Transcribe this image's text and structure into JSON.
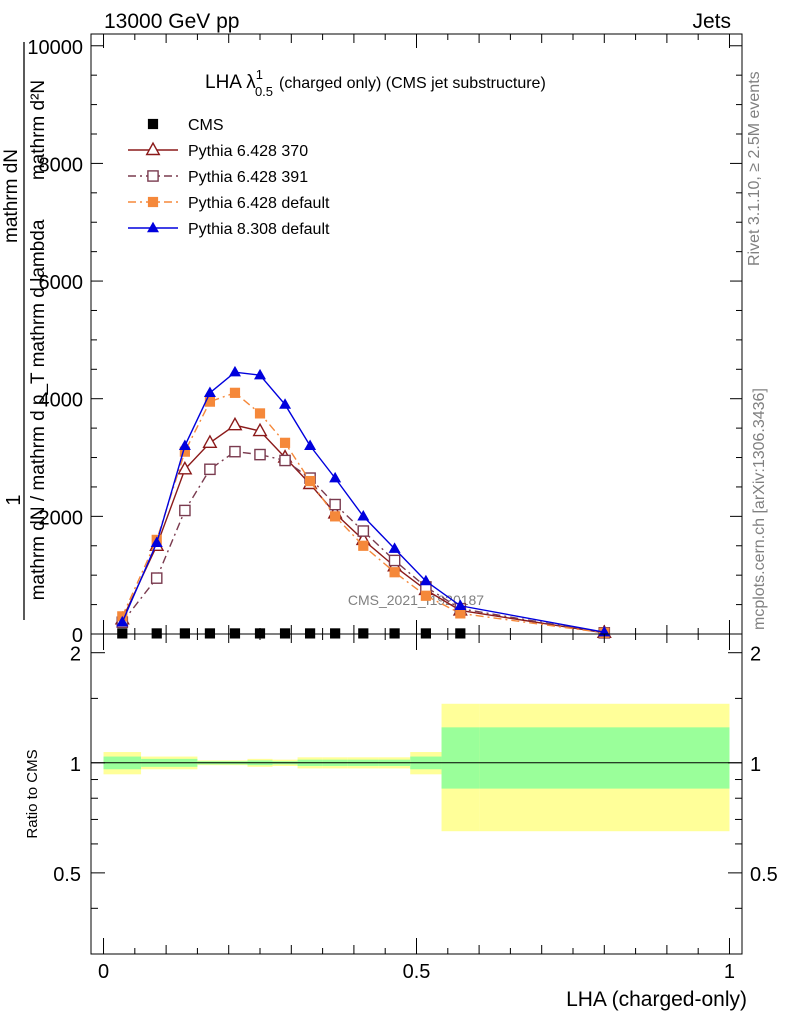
{
  "header": {
    "left": "13000 GeV pp",
    "right": "Jets"
  },
  "side_labels": {
    "rivet": "Rivet 3.1.10, ≥ 2.5M events",
    "mcplots": "mcplots.cern.ch [arXiv:1306.3436]"
  },
  "watermark": "CMS_2021_I1920187",
  "chart_data": [
    {
      "type": "line",
      "title": {
        "main": "LHA λ",
        "sup": "1",
        "sub": "0.5",
        "rest": "(charged only) (CMS jet substructure)"
      },
      "ylabel": {
        "numerator": "1",
        "fraction_top": "mathrm dN",
        "fraction_bottom": "mathrm dN / mathrm d p_T mathrm d lambda",
        "left_num": "mathrm d²N",
        "left_den": "mathrm d p_T mathrm d lambda"
      },
      "xlim": [
        -0.02,
        1.02
      ],
      "ylim": [
        0,
        10200
      ],
      "y_ticks": [
        0,
        2000,
        4000,
        6000,
        8000,
        10000
      ],
      "y_tick_labels": [
        "0",
        "2000",
        "4000",
        "6000",
        "8000",
        "10000"
      ],
      "legend_position": "top-left",
      "series": [
        {
          "name": "CMS",
          "color": "#000000",
          "marker": "square-filled",
          "x": [
            0.03,
            0.085,
            0.13,
            0.17,
            0.21,
            0.25,
            0.29,
            0.33,
            0.37,
            0.415,
            0.465,
            0.515,
            0.57
          ],
          "y": [
            10,
            10,
            10,
            10,
            10,
            10,
            10,
            10,
            10,
            10,
            10,
            10,
            10
          ]
        },
        {
          "name": "Pythia 6.428 370",
          "color": "#8b1a1a",
          "marker": "triangle-open",
          "dash": "",
          "x": [
            0.03,
            0.085,
            0.13,
            0.17,
            0.21,
            0.25,
            0.29,
            0.33,
            0.37,
            0.415,
            0.465,
            0.515,
            0.57,
            0.8
          ],
          "y": [
            250,
            1500,
            2800,
            3250,
            3550,
            3450,
            3000,
            2550,
            2050,
            1600,
            1150,
            750,
            400,
            20
          ]
        },
        {
          "name": "Pythia 6.428 391",
          "color": "#7a3b4f",
          "marker": "square-open",
          "dash": "8,4,2,4",
          "x": [
            0.03,
            0.085,
            0.13,
            0.17,
            0.21,
            0.25,
            0.29,
            0.33,
            0.37,
            0.415,
            0.465,
            0.515,
            0.57,
            0.8
          ],
          "y": [
            200,
            950,
            2100,
            2800,
            3100,
            3050,
            2950,
            2650,
            2200,
            1750,
            1250,
            800,
            430,
            20
          ]
        },
        {
          "name": "Pythia 6.428 default",
          "color": "#f5883a",
          "marker": "square-filled",
          "dash": "8,4,2,4",
          "x": [
            0.03,
            0.085,
            0.13,
            0.17,
            0.21,
            0.25,
            0.29,
            0.33,
            0.37,
            0.415,
            0.465,
            0.515,
            0.57,
            0.8
          ],
          "y": [
            300,
            1600,
            3100,
            3950,
            4100,
            3750,
            3250,
            2600,
            2000,
            1500,
            1050,
            650,
            350,
            20
          ]
        },
        {
          "name": "Pythia 8.308 default",
          "color": "#0000dd",
          "marker": "triangle-filled",
          "dash": "",
          "x": [
            0.03,
            0.085,
            0.13,
            0.17,
            0.21,
            0.25,
            0.29,
            0.33,
            0.37,
            0.415,
            0.465,
            0.515,
            0.57,
            0.8
          ],
          "y": [
            200,
            1550,
            3200,
            4100,
            4450,
            4400,
            3900,
            3200,
            2650,
            2000,
            1450,
            900,
            480,
            30
          ]
        }
      ]
    },
    {
      "type": "area",
      "ylabel": "Ratio to CMS",
      "xlabel": "LHA (charged-only)",
      "xlim": [
        -0.02,
        1.02
      ],
      "ylim": [
        0.3,
        2.25
      ],
      "y_ticks": [
        0.5,
        1,
        2
      ],
      "y_tick_labels": [
        "0.5",
        "1",
        "2"
      ],
      "x_ticks": [
        0,
        0.5,
        1
      ],
      "x_tick_labels": [
        "0",
        "0.5",
        "1"
      ],
      "reference_line": 1,
      "bands": {
        "edges": [
          0.0,
          0.06,
          0.15,
          0.23,
          0.27,
          0.31,
          0.35,
          0.39,
          0.44,
          0.49,
          0.54,
          0.6,
          1.0
        ],
        "stat_syst_low": [
          0.93,
          0.96,
          0.985,
          0.975,
          0.98,
          0.965,
          0.965,
          0.965,
          0.965,
          0.93,
          0.65,
          0.65
        ],
        "stat_syst_high": [
          1.07,
          1.04,
          1.015,
          1.025,
          1.02,
          1.035,
          1.035,
          1.035,
          1.035,
          1.07,
          1.45,
          1.45
        ],
        "stat_low": [
          0.96,
          0.975,
          0.99,
          0.985,
          0.99,
          0.98,
          0.98,
          0.98,
          0.98,
          0.96,
          0.85,
          0.85
        ],
        "stat_high": [
          1.04,
          1.025,
          1.01,
          1.015,
          1.01,
          1.02,
          1.02,
          1.02,
          1.02,
          1.04,
          1.25,
          1.25
        ],
        "stat_color": "#9aff9a",
        "stat_syst_color": "#ffff99"
      }
    }
  ]
}
